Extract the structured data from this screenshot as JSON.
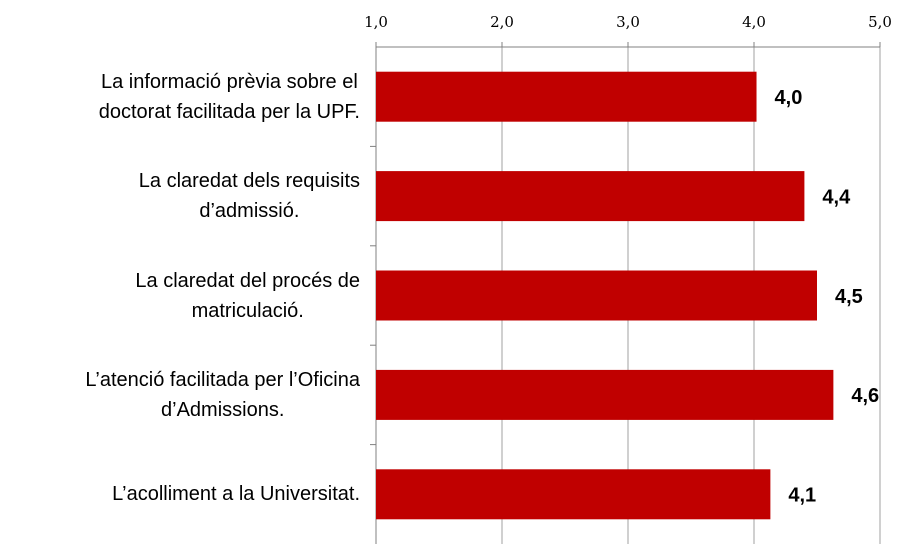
{
  "chart_data": {
    "type": "hbar",
    "categories": [
      "La informació prèvia sobre el\ndoctorat facilitada per la UPF.",
      "La claredat dels requisits\nd’admissió.",
      "La claredat del procés de\nmatriculació.",
      "L’atenció facilitada per l’Oficina\nd’Admissions.",
      "L’acolliment a la Universitat."
    ],
    "values": [
      4.02,
      4.4,
      4.5,
      4.63,
      4.13
    ],
    "value_labels": [
      "4,0",
      "4,4",
      "4,5",
      "4,6",
      "4,1"
    ],
    "color": "#c00000",
    "xlim": [
      1,
      5
    ],
    "xticks": [
      {
        "value": 1,
        "label": "1,0"
      },
      {
        "value": 2,
        "label": "2,0"
      },
      {
        "value": 3,
        "label": "3,0"
      },
      {
        "value": 4,
        "label": "4,0"
      },
      {
        "value": 5,
        "label": "5,0"
      }
    ],
    "grid": true
  }
}
